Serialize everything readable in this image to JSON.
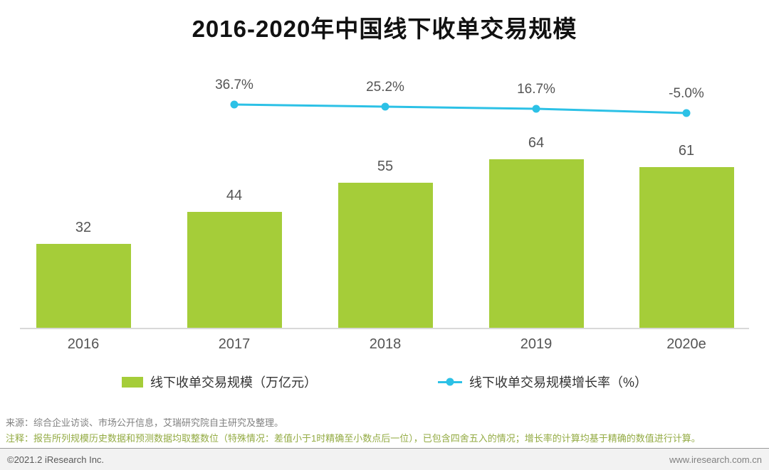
{
  "title": "2016-2020年中国线下收单交易规模",
  "chart_data": {
    "type": "bar",
    "title": "2016-2020年中国线下收单交易规模",
    "categories": [
      "2016",
      "2017",
      "2018",
      "2019",
      "2020e"
    ],
    "series": [
      {
        "name": "线下收单交易规模（万亿元）",
        "type": "bar",
        "color": "#a5cd39",
        "values": [
          32,
          44,
          55,
          64,
          61
        ]
      },
      {
        "name": "线下收单交易规模增长率（%）",
        "type": "line",
        "color": "#2cc1e6",
        "values": [
          null,
          36.7,
          25.2,
          16.7,
          -5.0
        ],
        "labels": [
          "",
          "36.7%",
          "25.2%",
          "16.7%",
          "-5.0%"
        ]
      }
    ],
    "ylim": [
      0,
      75
    ],
    "grid": false,
    "legend_position": "bottom"
  },
  "source": "来源：综合企业访谈、市场公开信息，艾瑞研究院自主研究及整理。",
  "note": "注释：报告所列规模历史数据和预测数据均取整数位（特殊情况：差值小于1时精确至小数点后一位），已包含四舍五入的情况；增长率的计算均基于精确的数值进行计算。",
  "footer": {
    "copyright": "©2021.2 iResearch Inc.",
    "website": "www.iresearch.com.cn"
  }
}
